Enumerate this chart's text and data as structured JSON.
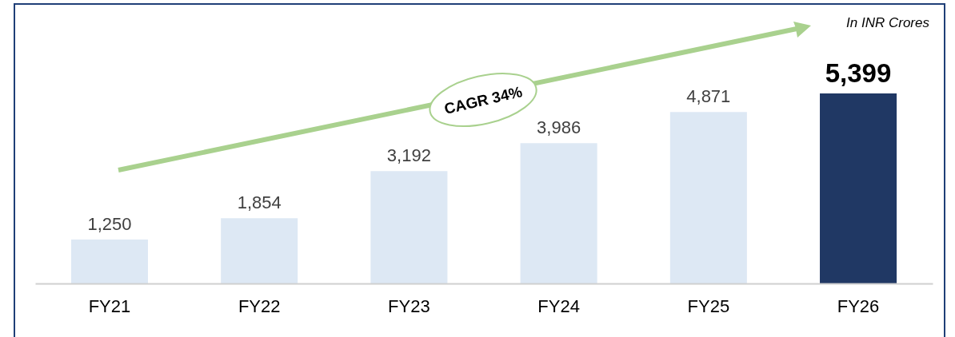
{
  "chart_data": {
    "type": "bar",
    "categories": [
      "FY21",
      "FY22",
      "FY23",
      "FY24",
      "FY25",
      "FY26"
    ],
    "values": [
      1250,
      1854,
      3192,
      3986,
      4871,
      5399
    ],
    "colors": [
      "#dde8f4",
      "#dde8f4",
      "#dde8f4",
      "#dde8f4",
      "#dde8f4",
      "#203864"
    ],
    "value_labels": [
      "1,250",
      "1,854",
      "3,192",
      "3,986",
      "4,871",
      "5,399"
    ],
    "annotations": [
      "In INR Crores",
      "CAGR 34%"
    ]
  }
}
